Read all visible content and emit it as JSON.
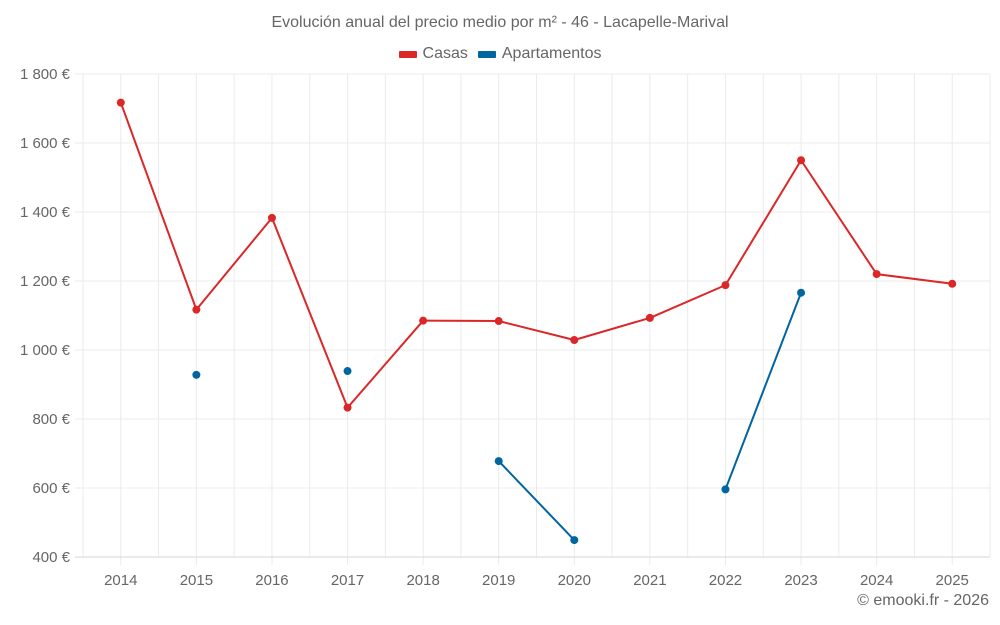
{
  "chart_data": {
    "type": "line",
    "title": "Evolución anual del precio medio por m² - 46 - Lacapelle-Marival",
    "xlabel": "",
    "ylabel": "",
    "categories": [
      "2014",
      "2015",
      "2016",
      "2017",
      "2018",
      "2019",
      "2020",
      "2021",
      "2022",
      "2023",
      "2024",
      "2025"
    ],
    "ylim": [
      400,
      1800
    ],
    "yticks": [
      400,
      600,
      800,
      1000,
      1200,
      1400,
      1600,
      1800
    ],
    "ytick_labels": [
      "400 €",
      "600 €",
      "800 €",
      "1 000 €",
      "1 200 €",
      "1 400 €",
      "1 600 €",
      "1 800 €"
    ],
    "grid": true,
    "legend_position": "top-center",
    "series": [
      {
        "name": "Casas",
        "color": "#dc2728",
        "values": [
          1717,
          1117,
          1383,
          833,
          1085,
          1084,
          1029,
          1093,
          1188,
          1550,
          1220,
          1192
        ]
      },
      {
        "name": "Apartamentos",
        "color": "#0065a0",
        "values": [
          null,
          928,
          null,
          939,
          null,
          678,
          449,
          null,
          596,
          1166,
          null,
          null
        ]
      }
    ]
  },
  "credit": "© emooki.fr - 2026"
}
